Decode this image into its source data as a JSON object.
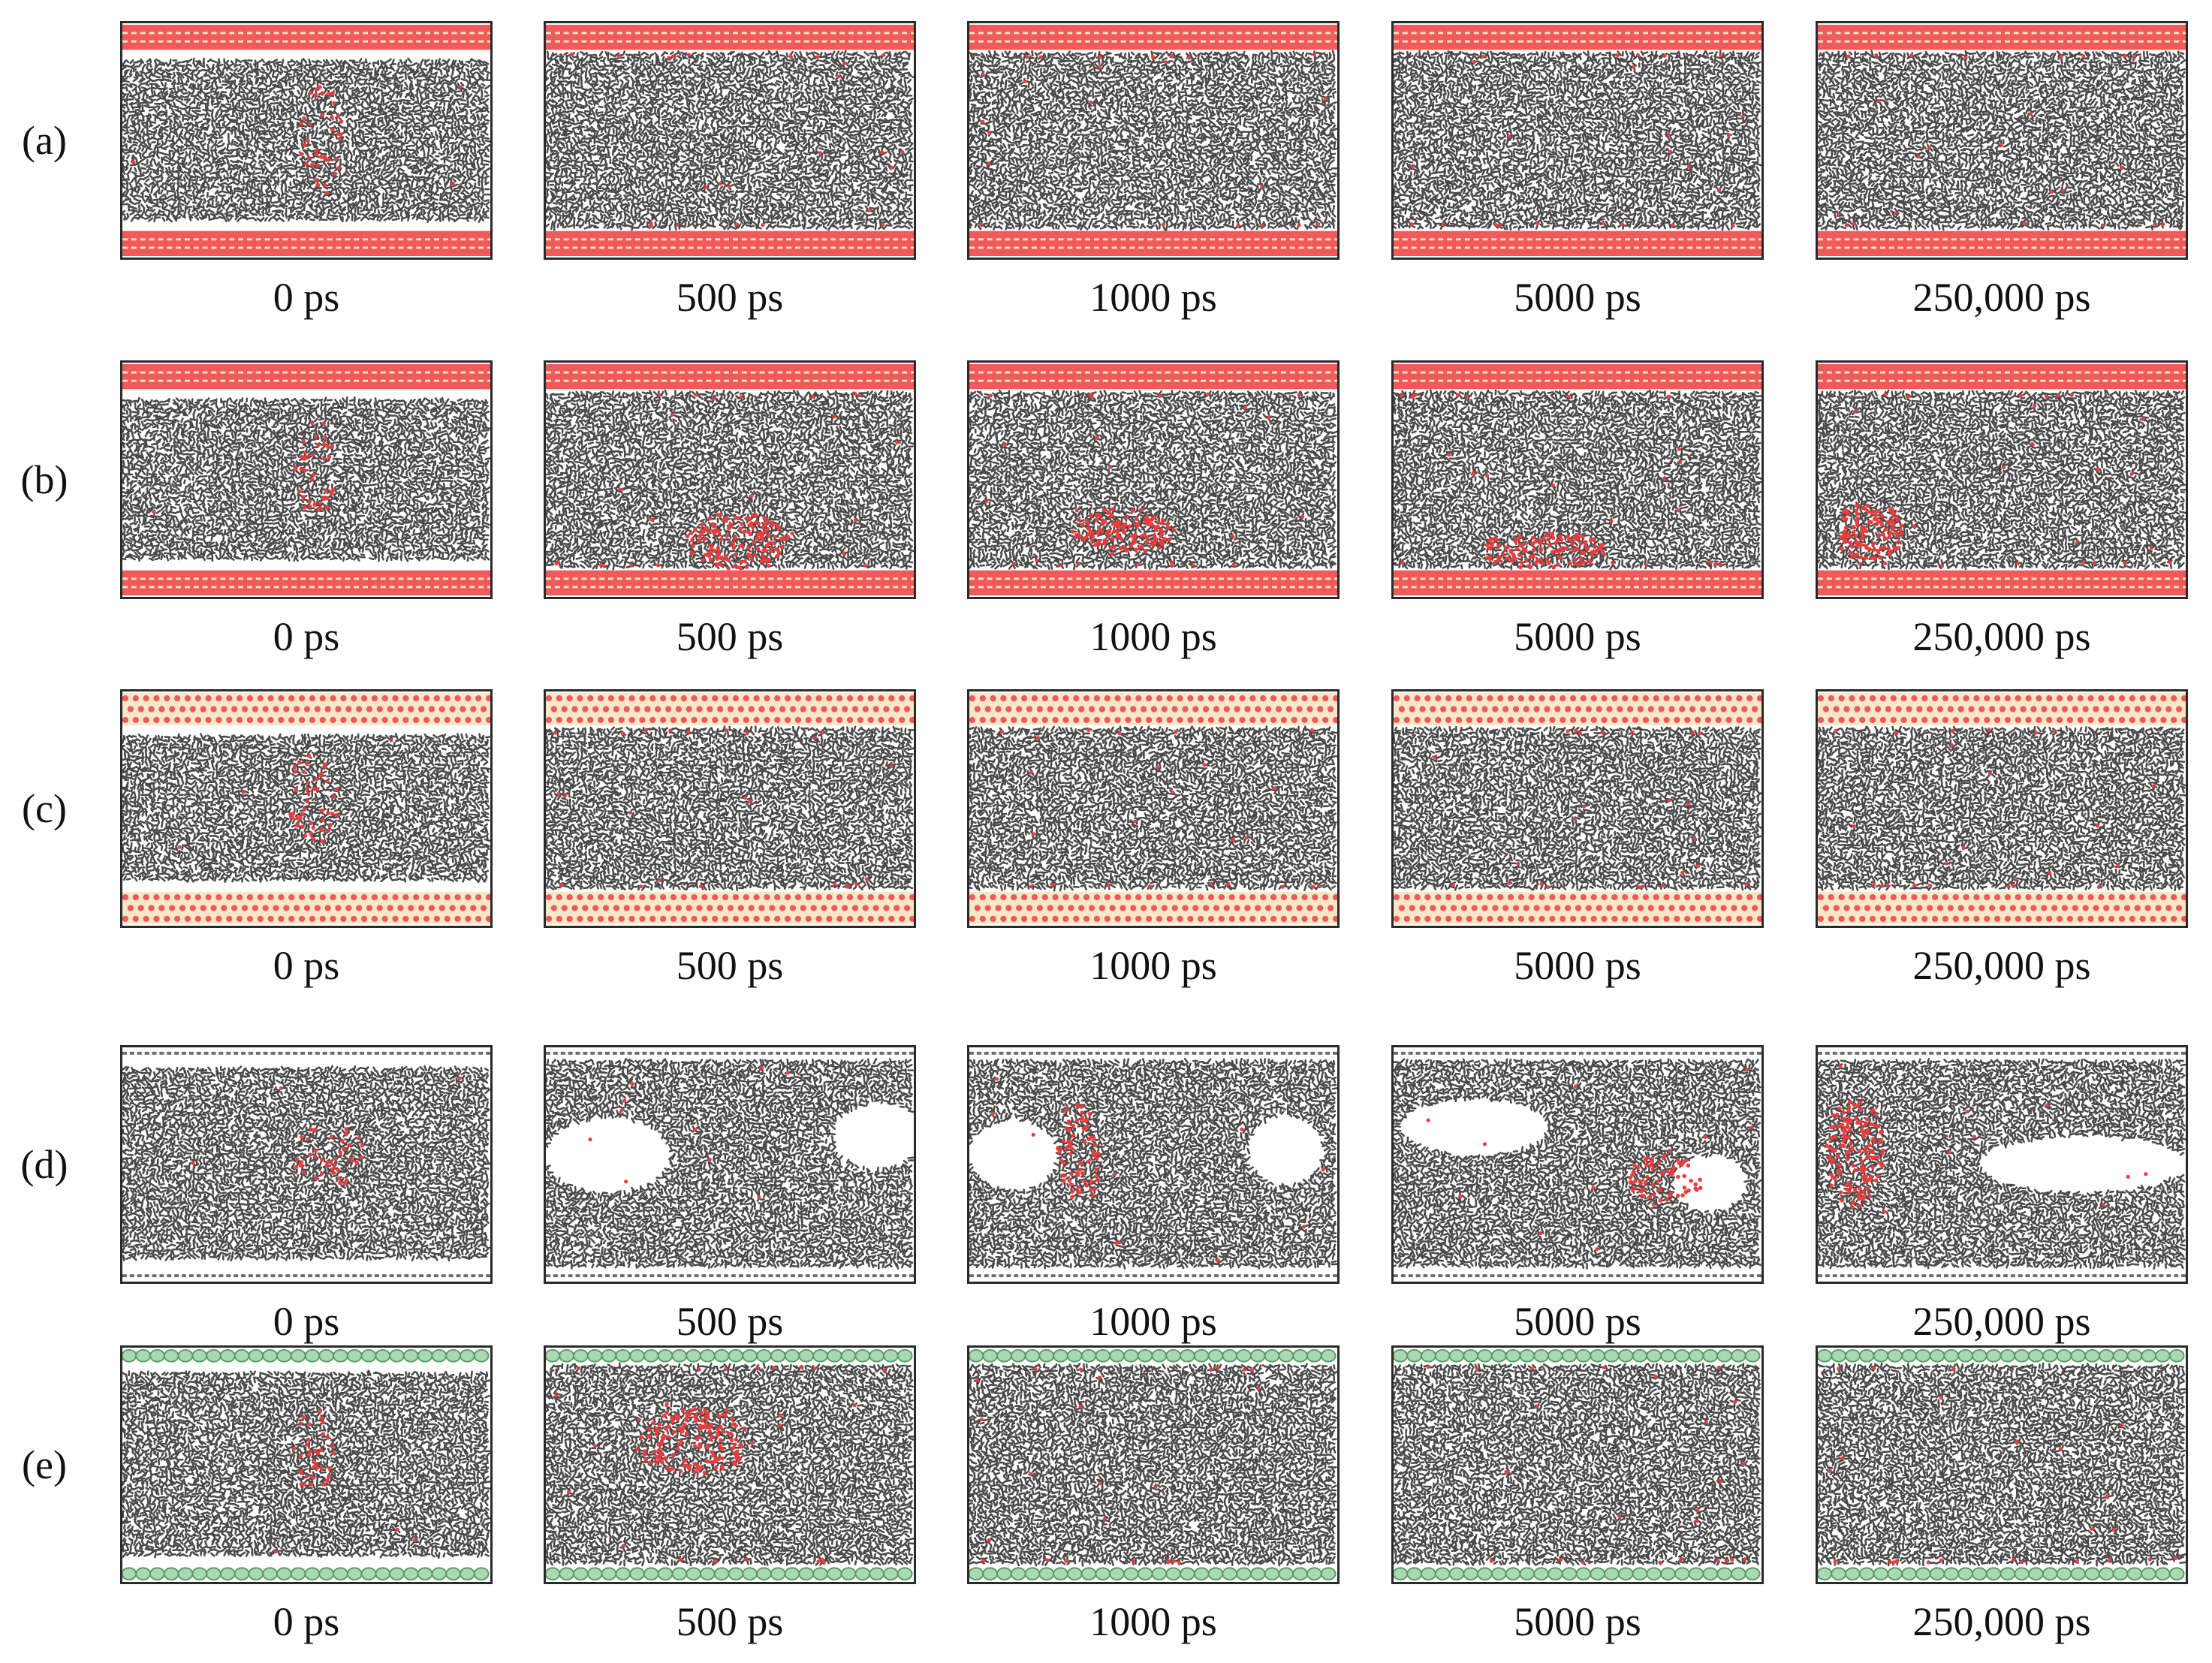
{
  "figure": {
    "rows": [
      {
        "label": "(a)",
        "wall": "red-stripe",
        "times": [
          "0 ps",
          "500 ps",
          "1000 ps",
          "5000 ps",
          "250,000 ps"
        ]
      },
      {
        "label": "(b)",
        "wall": "red-stripe",
        "times": [
          "0 ps",
          "500 ps",
          "1000 ps",
          "5000 ps",
          "250,000 ps"
        ]
      },
      {
        "label": "(c)",
        "wall": "red-lattice",
        "times": [
          "0 ps",
          "500 ps",
          "1000 ps",
          "5000 ps",
          "250,000 ps"
        ]
      },
      {
        "label": "(d)",
        "wall": "gray-thin",
        "times": [
          "0 ps",
          "500 ps",
          "1000 ps",
          "5000 ps",
          "250,000 ps"
        ]
      },
      {
        "label": "(e)",
        "wall": "green-spheres",
        "times": [
          "0 ps",
          "500 ps",
          "1000 ps",
          "5000 ps",
          "250,000 ps"
        ]
      }
    ],
    "colors": {
      "fluid": "#4a4a4a",
      "fluid_dark": "#2c2c2c",
      "solute": "#ee3b3b",
      "wall_red": "#f05a5a",
      "wall_cream": "#f6e7c8",
      "wall_green": "#a9d9b0",
      "wall_green_edge": "#5a9a68",
      "wall_gray": "#6b6b6b"
    }
  }
}
